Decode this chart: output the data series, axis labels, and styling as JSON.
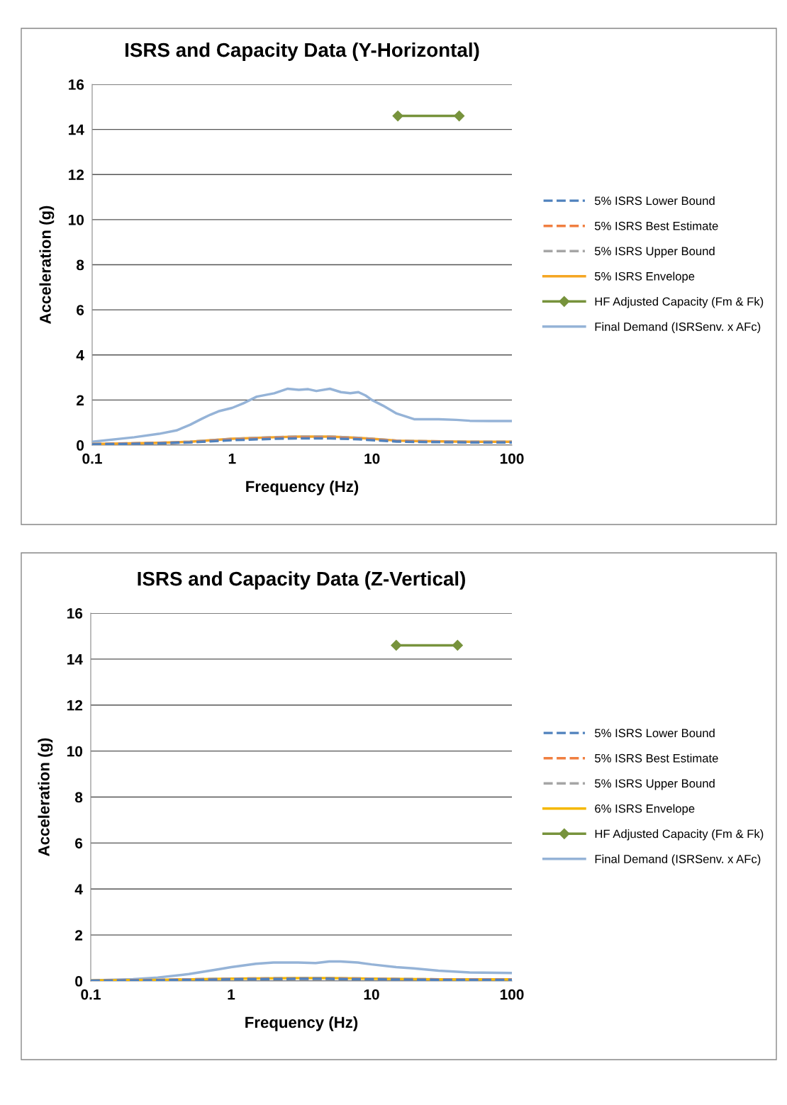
{
  "chart_data": [
    {
      "type": "line",
      "title": "ISRS and Capacity Data (Y-Horizontal)",
      "xlabel": "Frequency (Hz)",
      "ylabel": "Acceleration (g)",
      "log": "x",
      "xlim": [
        0.1,
        100
      ],
      "xticks": [
        {
          "value": 0.1,
          "label": "0.1"
        },
        1,
        10,
        100
      ],
      "ylim": [
        0,
        16
      ],
      "yticks": [
        0,
        2,
        4,
        6,
        8,
        10,
        12,
        14,
        16
      ],
      "grid": "y",
      "legend": "right",
      "series": [
        {
          "name": "5% ISRS Lower Bound",
          "color": "#4f81bd",
          "line_style": "dashed",
          "marker": "none",
          "x": [
            0.1,
            0.3,
            0.5,
            1,
            2,
            3,
            5,
            8,
            10,
            15,
            20,
            50,
            100
          ],
          "values": [
            0.03,
            0.08,
            0.12,
            0.22,
            0.28,
            0.3,
            0.3,
            0.26,
            0.22,
            0.16,
            0.14,
            0.12,
            0.12
          ]
        },
        {
          "name": "5% ISRS Best Estimate",
          "color": "#f07f40",
          "line_style": "dashed",
          "marker": "none",
          "x": [
            0.1,
            0.3,
            0.5,
            1,
            2,
            3,
            5,
            8,
            10,
            15,
            20,
            50,
            100
          ],
          "values": [
            0.04,
            0.09,
            0.13,
            0.25,
            0.32,
            0.34,
            0.34,
            0.29,
            0.25,
            0.18,
            0.16,
            0.13,
            0.13
          ]
        },
        {
          "name": "5% ISRS Upper Bound",
          "color": "#a5a5a5",
          "line_style": "dashed",
          "marker": "none",
          "x": [
            0.1,
            0.3,
            0.5,
            1,
            2,
            3,
            5,
            8,
            10,
            15,
            20,
            50,
            100
          ],
          "values": [
            0.05,
            0.1,
            0.15,
            0.28,
            0.35,
            0.38,
            0.38,
            0.32,
            0.28,
            0.2,
            0.18,
            0.15,
            0.15
          ]
        },
        {
          "name": "5% ISRS Envelope",
          "color": "#f5a623",
          "line_style": "solid",
          "marker": "none",
          "x": [
            0.1,
            0.3,
            0.5,
            1,
            2,
            3,
            5,
            8,
            10,
            15,
            20,
            50,
            100
          ],
          "values": [
            0.05,
            0.1,
            0.15,
            0.28,
            0.35,
            0.38,
            0.38,
            0.32,
            0.28,
            0.2,
            0.18,
            0.15,
            0.15
          ]
        },
        {
          "name": "HF Adjusted Capacity (Fm & Fk)",
          "color": "#77933c",
          "line_style": "solid",
          "marker": "diamond",
          "x": [
            15.3,
            42
          ],
          "values": [
            14.6,
            14.6
          ]
        },
        {
          "name": "Final Demand (ISRSenv. x AFc)",
          "color": "#95b3d7",
          "line_style": "solid",
          "marker": "none",
          "x": [
            0.1,
            0.2,
            0.3,
            0.4,
            0.5,
            0.6,
            0.7,
            0.8,
            1,
            1.2,
            1.5,
            2,
            2.5,
            3,
            3.5,
            4,
            5,
            6,
            7,
            8,
            9,
            10,
            12,
            15,
            20,
            30,
            40,
            50,
            70,
            100
          ],
          "values": [
            0.15,
            0.35,
            0.5,
            0.65,
            0.9,
            1.15,
            1.35,
            1.5,
            1.65,
            1.85,
            2.15,
            2.3,
            2.5,
            2.45,
            2.48,
            2.4,
            2.5,
            2.35,
            2.3,
            2.35,
            2.2,
            2.0,
            1.75,
            1.4,
            1.15,
            1.15,
            1.12,
            1.08,
            1.07,
            1.07
          ]
        }
      ]
    },
    {
      "type": "line",
      "title": "ISRS and Capacity Data (Z-Vertical)",
      "xlabel": "Frequency (Hz)",
      "ylabel": "Acceleration (g)",
      "log": "x",
      "xlim": [
        0.1,
        100
      ],
      "xticks": [
        {
          "value": 0.1,
          "label": "0.1"
        },
        1,
        10,
        100
      ],
      "ylim": [
        0,
        16
      ],
      "yticks": [
        0,
        2,
        4,
        6,
        8,
        10,
        12,
        14,
        16
      ],
      "grid": "y",
      "legend": "right",
      "series": [
        {
          "name": "5% ISRS Lower Bound",
          "color": "#4f81bd",
          "line_style": "dashed",
          "marker": "none",
          "x": [
            0.1,
            0.3,
            1,
            3,
            5,
            10,
            30,
            100
          ],
          "values": [
            0.01,
            0.03,
            0.07,
            0.09,
            0.09,
            0.07,
            0.05,
            0.05
          ]
        },
        {
          "name": "5% ISRS Best Estimate",
          "color": "#f07f40",
          "line_style": "dashed",
          "marker": "none",
          "x": [
            0.1,
            0.3,
            1,
            3,
            5,
            10,
            30,
            100
          ],
          "values": [
            0.01,
            0.04,
            0.08,
            0.1,
            0.1,
            0.08,
            0.06,
            0.06
          ]
        },
        {
          "name": "5% ISRS Upper Bound",
          "color": "#a5a5a5",
          "line_style": "dashed",
          "marker": "none",
          "x": [
            0.1,
            0.3,
            1,
            3,
            5,
            10,
            30,
            100
          ],
          "values": [
            0.02,
            0.05,
            0.1,
            0.12,
            0.12,
            0.1,
            0.07,
            0.07
          ]
        },
        {
          "name": "6% ISRS Envelope",
          "color": "#f5b800",
          "line_style": "solid",
          "marker": "none",
          "x": [
            0.1,
            0.3,
            1,
            3,
            5,
            10,
            30,
            100
          ],
          "values": [
            0.02,
            0.05,
            0.1,
            0.12,
            0.12,
            0.1,
            0.07,
            0.07
          ]
        },
        {
          "name": "HF Adjusted Capacity (Fm & Fk)",
          "color": "#77933c",
          "line_style": "solid",
          "marker": "diamond",
          "x": [
            15,
            41
          ],
          "values": [
            14.6,
            14.6
          ]
        },
        {
          "name": "Final Demand (ISRSenv. x AFc)",
          "color": "#95b3d7",
          "line_style": "solid",
          "marker": "none",
          "x": [
            0.1,
            0.2,
            0.3,
            0.5,
            0.8,
            1,
            1.5,
            2,
            3,
            4,
            5,
            6,
            8,
            10,
            15,
            20,
            30,
            50,
            100
          ],
          "values": [
            0.02,
            0.08,
            0.15,
            0.3,
            0.5,
            0.6,
            0.75,
            0.8,
            0.8,
            0.78,
            0.85,
            0.85,
            0.8,
            0.72,
            0.6,
            0.55,
            0.45,
            0.37,
            0.35
          ]
        }
      ]
    }
  ]
}
